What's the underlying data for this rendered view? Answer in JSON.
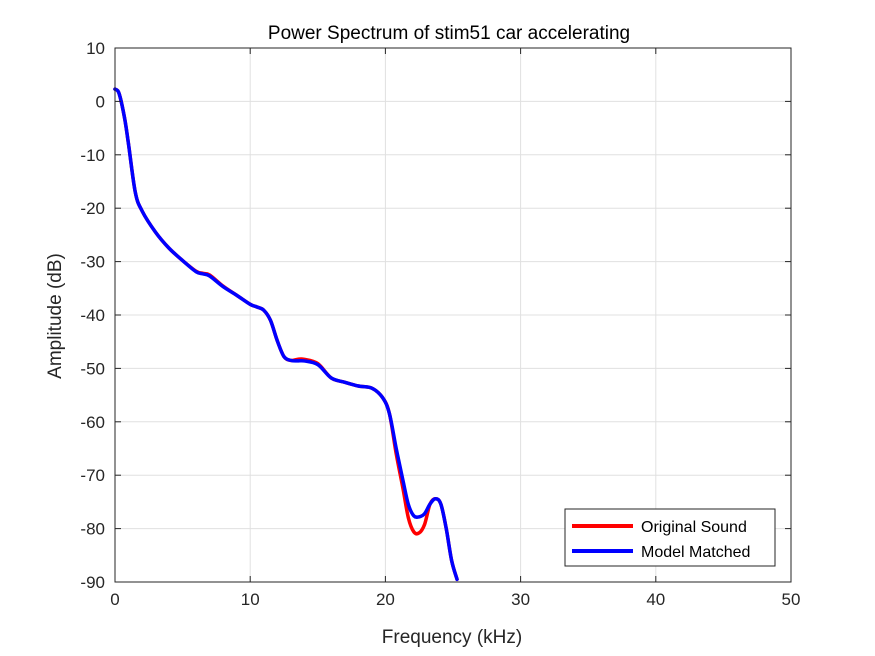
{
  "chart_data": {
    "type": "line",
    "title": "Power Spectrum of stim51 car accelerating",
    "xlabel": "Frequency (kHz)",
    "ylabel": "Amplitude (dB)",
    "xlim": [
      0,
      50
    ],
    "ylim": [
      -90,
      10
    ],
    "xticks": [
      0,
      10,
      20,
      30,
      40,
      50
    ],
    "yticks": [
      10,
      0,
      -10,
      -20,
      -30,
      -40,
      -50,
      -60,
      -70,
      -80,
      -90
    ],
    "grid": true,
    "legend_position": "bottom-right",
    "series": [
      {
        "name": "Original Sound",
        "color": "#ff0000",
        "x": [
          0,
          0.3,
          0.7,
          1.0,
          1.5,
          2.0,
          3.0,
          4.0,
          5.0,
          6.0,
          6.5,
          7.0,
          8.0,
          9.0,
          10.0,
          10.5,
          11.0,
          11.5,
          12.0,
          12.5,
          13.0,
          13.5,
          14.0,
          15.0,
          16.0,
          17.0,
          18.0,
          19.0,
          19.8,
          20.3,
          20.8,
          21.3,
          21.7,
          22.1,
          22.5,
          22.9,
          23.3,
          23.7,
          24.1,
          24.5,
          24.9,
          25.3
        ],
        "y": [
          2.3,
          1.5,
          -3,
          -8,
          -17,
          -20.5,
          -24.5,
          -27.5,
          -29.8,
          -31.8,
          -32.2,
          -32.5,
          -34.6,
          -36.3,
          -38.0,
          -38.5,
          -39.1,
          -41,
          -44.8,
          -47.8,
          -48.5,
          -48.3,
          -48.3,
          -49.1,
          -51.8,
          -52.6,
          -53.3,
          -53.7,
          -55.5,
          -58.5,
          -66,
          -72.5,
          -78,
          -80.6,
          -80.8,
          -79.2,
          -75.4,
          -74.4,
          -75.4,
          -80,
          -86,
          -89.5
        ]
      },
      {
        "name": "Model Matched",
        "color": "#0000ff",
        "x": [
          0,
          0.3,
          0.7,
          1.0,
          1.5,
          2.0,
          3.0,
          4.0,
          5.0,
          6.0,
          6.5,
          7.0,
          8.0,
          9.0,
          10.0,
          10.5,
          11.0,
          11.5,
          12.0,
          12.5,
          13.0,
          13.5,
          14.0,
          15.0,
          16.0,
          17.0,
          18.0,
          19.0,
          19.8,
          20.3,
          20.8,
          21.3,
          21.7,
          22.1,
          22.5,
          22.9,
          23.3,
          23.7,
          24.1,
          24.5,
          24.9,
          25.3
        ],
        "y": [
          2.3,
          1.5,
          -3,
          -8,
          -17,
          -20.5,
          -24.5,
          -27.5,
          -29.8,
          -31.9,
          -32.3,
          -32.7,
          -34.7,
          -36.3,
          -38.0,
          -38.5,
          -39.1,
          -41,
          -44.8,
          -47.8,
          -48.5,
          -48.6,
          -48.6,
          -49.3,
          -51.8,
          -52.6,
          -53.3,
          -53.7,
          -55.5,
          -58.5,
          -65,
          -71,
          -75.5,
          -77.6,
          -77.8,
          -77.2,
          -75.4,
          -74.4,
          -75.4,
          -80,
          -86,
          -89.5
        ]
      }
    ]
  }
}
